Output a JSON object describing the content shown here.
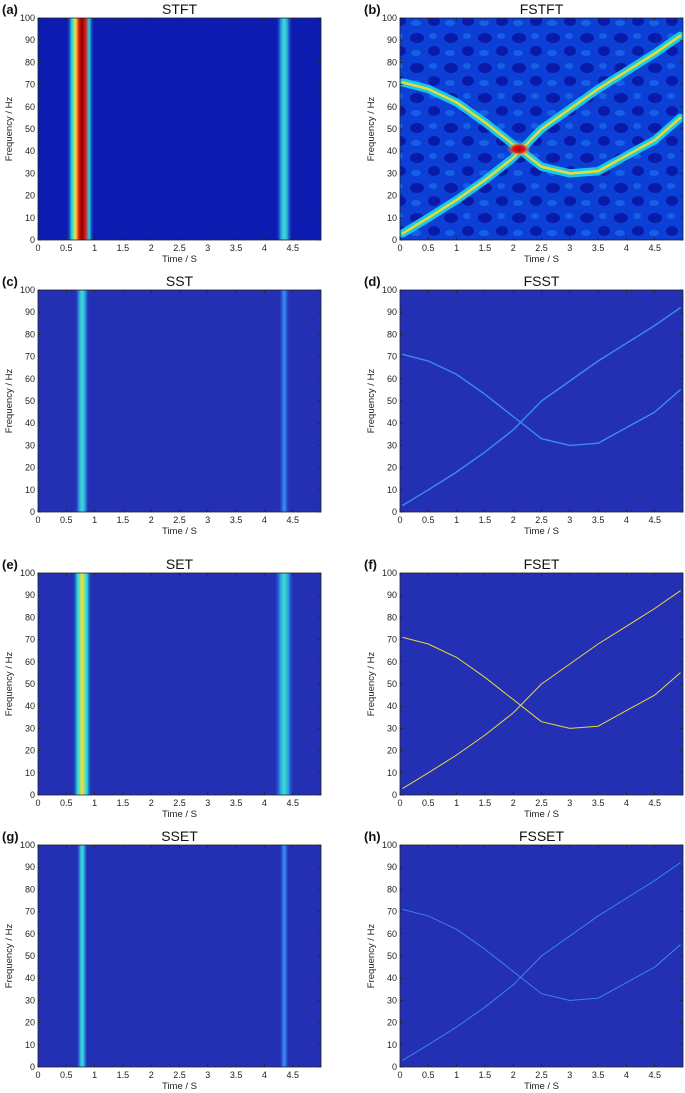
{
  "colors": {
    "background_blue": "#1f2ab8",
    "deep_blue": "#0b0f8f",
    "cyan": "#18d8e8",
    "yellow": "#f2e23a",
    "red": "#e01414",
    "dark_red": "#8a0000"
  },
  "chart_data": [
    {
      "type": "heatmap",
      "panel_label": "(a)",
      "title": "STFT",
      "xlabel": "Time / S",
      "ylabel": "Frequency / Hz",
      "xlim": [
        0,
        5
      ],
      "ylim": [
        0,
        100
      ],
      "x_ticks": [
        "0",
        "0.5",
        "1",
        "1.5",
        "2",
        "2.5",
        "3",
        "3.5",
        "4",
        "4.5"
      ],
      "y_ticks": [
        "0",
        "10",
        "20",
        "30",
        "40",
        "50",
        "60",
        "70",
        "80",
        "90",
        "100"
      ],
      "features": [
        {
          "kind": "vertical_band",
          "t": 0.75,
          "width": 0.22,
          "level": "red"
        },
        {
          "kind": "vertical_band",
          "t": 4.35,
          "width": 0.13,
          "level": "cyan"
        }
      ]
    },
    {
      "type": "heatmap",
      "panel_label": "(b)",
      "title": "FSTFT",
      "xlabel": "Time / S",
      "ylabel": "Frequency / Hz",
      "xlim": [
        0,
        5
      ],
      "ylim": [
        0,
        100
      ],
      "x_ticks": [
        "0",
        "0.5",
        "1",
        "1.5",
        "2",
        "2.5",
        "3",
        "3.5",
        "4",
        "4.5"
      ],
      "y_ticks": [
        "0",
        "10",
        "20",
        "30",
        "40",
        "50",
        "60",
        "70",
        "80",
        "90",
        "100"
      ],
      "features": [
        {
          "kind": "ridge",
          "level": "yellow",
          "width": 2.6,
          "points": [
            [
              0.05,
              3
            ],
            [
              0.5,
              10
            ],
            [
              1.0,
              18
            ],
            [
              1.5,
              27
            ],
            [
              2.0,
              37
            ],
            [
              2.5,
              50
            ],
            [
              3.0,
              59
            ],
            [
              3.5,
              68
            ],
            [
              4.0,
              76
            ],
            [
              4.5,
              84
            ],
            [
              4.95,
              92
            ]
          ]
        },
        {
          "kind": "ridge",
          "level": "yellow",
          "width": 2.6,
          "points": [
            [
              0.05,
              71
            ],
            [
              0.5,
              68
            ],
            [
              1.0,
              62
            ],
            [
              1.5,
              53
            ],
            [
              2.0,
              43
            ],
            [
              2.5,
              33
            ],
            [
              3.0,
              30
            ],
            [
              3.5,
              31
            ],
            [
              4.0,
              38
            ],
            [
              4.5,
              45
            ],
            [
              4.95,
              55
            ]
          ]
        },
        {
          "kind": "hotspot",
          "t": 2.1,
          "f": 41,
          "level": "red"
        }
      ]
    },
    {
      "type": "heatmap",
      "panel_label": "(c)",
      "title": "SST",
      "xlabel": "Time / S",
      "ylabel": "Frequency / Hz",
      "xlim": [
        0,
        5
      ],
      "ylim": [
        0,
        100
      ],
      "x_ticks": [
        "0",
        "0.5",
        "1",
        "1.5",
        "2",
        "2.5",
        "3",
        "3.5",
        "4",
        "4.5"
      ],
      "y_ticks": [
        "0",
        "10",
        "20",
        "30",
        "40",
        "50",
        "60",
        "70",
        "80",
        "90",
        "100"
      ],
      "features": [
        {
          "kind": "vertical_band",
          "t": 0.78,
          "width": 0.12,
          "level": "cyan"
        },
        {
          "kind": "vertical_band",
          "t": 4.35,
          "width": 0.09,
          "level": "light_blue"
        }
      ]
    },
    {
      "type": "heatmap",
      "panel_label": "(d)",
      "title": "FSST",
      "xlabel": "Time / S",
      "ylabel": "Frequency / Hz",
      "xlim": [
        0,
        5
      ],
      "ylim": [
        0,
        100
      ],
      "x_ticks": [
        "0",
        "0.5",
        "1",
        "1.5",
        "2",
        "2.5",
        "3",
        "3.5",
        "4",
        "4.5"
      ],
      "y_ticks": [
        "0",
        "10",
        "20",
        "30",
        "40",
        "50",
        "60",
        "70",
        "80",
        "90",
        "100"
      ],
      "features": [
        {
          "kind": "ridge",
          "level": "light_blue",
          "width": 1.4,
          "points": [
            [
              0.05,
              3
            ],
            [
              0.5,
              10
            ],
            [
              1.0,
              18
            ],
            [
              1.5,
              27
            ],
            [
              2.0,
              37
            ],
            [
              2.5,
              50
            ],
            [
              3.0,
              59
            ],
            [
              3.5,
              68
            ],
            [
              4.0,
              76
            ],
            [
              4.5,
              84
            ],
            [
              4.95,
              92
            ]
          ]
        },
        {
          "kind": "ridge",
          "level": "light_blue",
          "width": 1.4,
          "points": [
            [
              0.05,
              71
            ],
            [
              0.5,
              68
            ],
            [
              1.0,
              62
            ],
            [
              1.5,
              53
            ],
            [
              2.0,
              43
            ],
            [
              2.5,
              33
            ],
            [
              3.0,
              30
            ],
            [
              3.5,
              31
            ],
            [
              4.0,
              38
            ],
            [
              4.5,
              45
            ],
            [
              4.95,
              55
            ]
          ]
        }
      ]
    },
    {
      "type": "heatmap",
      "panel_label": "(e)",
      "title": "SET",
      "xlabel": "Time / S",
      "ylabel": "Frequency / Hz",
      "xlim": [
        0,
        5
      ],
      "ylim": [
        0,
        100
      ],
      "x_ticks": [
        "0",
        "0.5",
        "1",
        "1.5",
        "2",
        "2.5",
        "3",
        "3.5",
        "4",
        "4.5"
      ],
      "y_ticks": [
        "0",
        "10",
        "20",
        "30",
        "40",
        "50",
        "60",
        "70",
        "80",
        "90",
        "100"
      ],
      "features": [
        {
          "kind": "vertical_band",
          "t": 0.78,
          "width": 0.16,
          "level": "yellow"
        },
        {
          "kind": "vertical_band",
          "t": 4.35,
          "width": 0.16,
          "level": "cyan"
        }
      ]
    },
    {
      "type": "heatmap",
      "panel_label": "(f)",
      "title": "FSET",
      "xlabel": "Time / S",
      "ylabel": "Frequency / Hz",
      "xlim": [
        0,
        5
      ],
      "ylim": [
        0,
        100
      ],
      "x_ticks": [
        "0",
        "0.5",
        "1",
        "1.5",
        "2",
        "2.5",
        "3",
        "3.5",
        "4",
        "4.5"
      ],
      "y_ticks": [
        "0",
        "10",
        "20",
        "30",
        "40",
        "50",
        "60",
        "70",
        "80",
        "90",
        "100"
      ],
      "features": [
        {
          "kind": "ridge",
          "level": "yellow",
          "width": 1.0,
          "points": [
            [
              0.05,
              3
            ],
            [
              0.5,
              10
            ],
            [
              1.0,
              18
            ],
            [
              1.5,
              27
            ],
            [
              2.0,
              37
            ],
            [
              2.5,
              50
            ],
            [
              3.0,
              59
            ],
            [
              3.5,
              68
            ],
            [
              4.0,
              76
            ],
            [
              4.5,
              84
            ],
            [
              4.95,
              92
            ]
          ]
        },
        {
          "kind": "ridge",
          "level": "yellow",
          "width": 1.0,
          "points": [
            [
              0.05,
              71
            ],
            [
              0.5,
              68
            ],
            [
              1.0,
              62
            ],
            [
              1.5,
              53
            ],
            [
              2.0,
              43
            ],
            [
              2.5,
              33
            ],
            [
              3.0,
              30
            ],
            [
              3.5,
              31
            ],
            [
              4.0,
              38
            ],
            [
              4.5,
              45
            ],
            [
              4.95,
              55
            ]
          ]
        }
      ]
    },
    {
      "type": "heatmap",
      "panel_label": "(g)",
      "title": "SSET",
      "xlabel": "Time / S",
      "ylabel": "Frequency / Hz",
      "xlim": [
        0,
        5
      ],
      "ylim": [
        0,
        100
      ],
      "x_ticks": [
        "0",
        "0.5",
        "1",
        "1.5",
        "2",
        "2.5",
        "3",
        "3.5",
        "4",
        "4.5"
      ],
      "y_ticks": [
        "0",
        "10",
        "20",
        "30",
        "40",
        "50",
        "60",
        "70",
        "80",
        "90",
        "100"
      ],
      "features": [
        {
          "kind": "vertical_band",
          "t": 0.78,
          "width": 0.09,
          "level": "cyan"
        },
        {
          "kind": "vertical_band",
          "t": 4.35,
          "width": 0.08,
          "level": "light_blue"
        }
      ]
    },
    {
      "type": "heatmap",
      "panel_label": "(h)",
      "title": "FSSET",
      "xlabel": "Time / S",
      "ylabel": "Frequency / Hz",
      "xlim": [
        0,
        5
      ],
      "ylim": [
        0,
        100
      ],
      "x_ticks": [
        "0",
        "0.5",
        "1",
        "1.5",
        "2",
        "2.5",
        "3",
        "3.5",
        "4",
        "4.5"
      ],
      "y_ticks": [
        "0",
        "10",
        "20",
        "30",
        "40",
        "50",
        "60",
        "70",
        "80",
        "90",
        "100"
      ],
      "features": [
        {
          "kind": "ridge",
          "level": "light_blue",
          "width": 0.9,
          "points": [
            [
              0.05,
              3
            ],
            [
              0.5,
              10
            ],
            [
              1.0,
              18
            ],
            [
              1.5,
              27
            ],
            [
              2.0,
              37
            ],
            [
              2.5,
              50
            ],
            [
              3.0,
              59
            ],
            [
              3.5,
              68
            ],
            [
              4.0,
              76
            ],
            [
              4.5,
              84
            ],
            [
              4.95,
              92
            ]
          ]
        },
        {
          "kind": "ridge",
          "level": "light_blue",
          "width": 0.9,
          "points": [
            [
              0.05,
              71
            ],
            [
              0.5,
              68
            ],
            [
              1.0,
              62
            ],
            [
              1.5,
              53
            ],
            [
              2.0,
              43
            ],
            [
              2.5,
              33
            ],
            [
              3.0,
              30
            ],
            [
              3.5,
              31
            ],
            [
              4.0,
              38
            ],
            [
              4.5,
              45
            ],
            [
              4.95,
              55
            ]
          ]
        }
      ]
    }
  ]
}
